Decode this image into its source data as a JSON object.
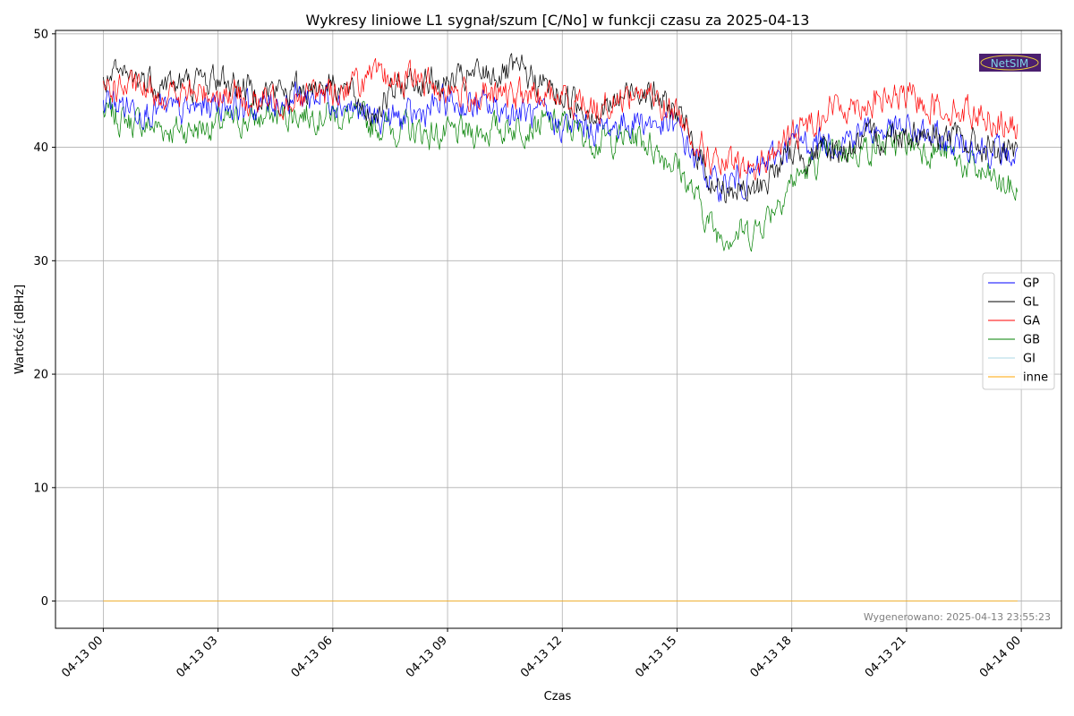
{
  "chart_data": {
    "type": "line",
    "title": "Wykresy liniowe L1 sygnał/szum [C/No] w funkcji czasu za 2025-04-13",
    "xlabel": "Czas",
    "ylabel": "Wartość [dBHz]",
    "x_ticks": [
      "04-13 00",
      "04-13 03",
      "04-13 06",
      "04-13 09",
      "04-13 12",
      "04-13 15",
      "04-13 18",
      "04-13 21",
      "04-14 00"
    ],
    "x_range_hours": [
      -1.25,
      25.05
    ],
    "ylim": [
      -2.4,
      50.3
    ],
    "y_ticks": [
      0,
      10,
      20,
      30,
      40,
      50
    ],
    "grid": true,
    "legend_position": "right",
    "x": [
      0,
      1,
      2,
      3,
      4,
      5,
      6,
      7,
      8,
      9,
      10,
      11,
      12,
      13,
      14,
      15,
      16,
      17,
      18,
      19,
      20,
      21,
      22,
      23,
      23.9
    ],
    "series": [
      {
        "name": "GP",
        "color": "#0000ff",
        "values": [
          44.0,
          43.5,
          43.0,
          44.0,
          43.5,
          44.5,
          44.5,
          42.5,
          42.5,
          44.0,
          43.5,
          43.0,
          42.0,
          41.5,
          42.5,
          41.5,
          36.5,
          37.5,
          40.5,
          40.5,
          41.5,
          41.5,
          40.5,
          40.0,
          39.0
        ]
      },
      {
        "name": "GL",
        "color": "#000000",
        "values": [
          46.0,
          46.0,
          45.5,
          46.0,
          45.0,
          45.0,
          46.0,
          43.0,
          46.0,
          45.5,
          46.5,
          46.5,
          44.5,
          43.0,
          45.5,
          43.0,
          36.5,
          36.0,
          39.5,
          39.5,
          40.5,
          41.5,
          41.0,
          40.0,
          39.0
        ]
      },
      {
        "name": "GA",
        "color": "#ff0000",
        "values": [
          45.5,
          45.0,
          44.5,
          45.0,
          44.0,
          44.5,
          45.0,
          46.0,
          46.0,
          45.0,
          44.5,
          44.5,
          44.5,
          43.5,
          45.0,
          43.0,
          38.5,
          38.0,
          41.0,
          43.5,
          44.0,
          44.5,
          43.5,
          43.0,
          41.5
        ]
      },
      {
        "name": "GB",
        "color": "#008000",
        "values": [
          43.0,
          42.0,
          41.5,
          42.0,
          42.5,
          43.0,
          43.0,
          42.0,
          41.5,
          41.0,
          41.5,
          42.0,
          42.0,
          40.5,
          41.0,
          38.5,
          32.5,
          32.5,
          37.0,
          39.5,
          40.0,
          40.5,
          39.5,
          37.5,
          36.0
        ]
      },
      {
        "name": "GI",
        "color": "#add8e6",
        "values": [
          0.0,
          0.0,
          0.0,
          0.0,
          0.0,
          0.0,
          0.0,
          0.0,
          0.0,
          0.0,
          0.0,
          0.0,
          0.0,
          0.0,
          0.0,
          0.0,
          0.0,
          0.0,
          0.0,
          0.0,
          0.0,
          0.0,
          0.0,
          0.0,
          0.0
        ]
      },
      {
        "name": "inne",
        "color": "#ffa500",
        "values": [
          0.0,
          0.0,
          0.0,
          0.0,
          0.0,
          0.0,
          0.0,
          0.0,
          0.0,
          0.0,
          0.0,
          0.0,
          0.0,
          0.0,
          0.0,
          0.0,
          0.0,
          0.0,
          0.0,
          0.0,
          0.0,
          0.0,
          0.0,
          0.0,
          0.0
        ]
      }
    ],
    "annotations": {
      "generated": "Wygenerowano: 2025-04-13 23:55:23",
      "logo_text": "NetSIM"
    }
  }
}
